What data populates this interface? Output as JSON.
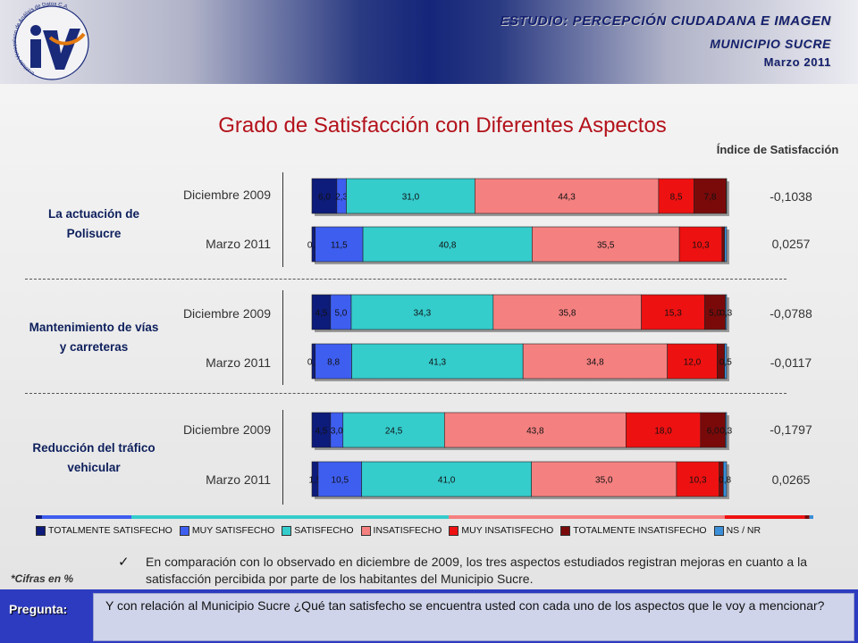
{
  "header": {
    "line1": "ESTUDIO: PERCEPCIÓN CIUDADANA E IMAGEN",
    "line2": "MUNICIPIO SUCRE",
    "line3": "Marzo 2011",
    "logo_text": "Instituto Venezolano de Análisis de Datos C.A."
  },
  "chart_data": {
    "type": "bar",
    "orientation": "horizontal",
    "stacked": true,
    "percent_stacked": true,
    "title": "Grado de Satisfacción con Diferentes Aspectos",
    "index_header": "Índice de Satisfacción",
    "categories_legend": [
      "TOTALMENTE SATISFECHO",
      "MUY SATISFECHO",
      "SATISFECHO",
      "INSATISFECHO",
      "MUY INSATISFECHO",
      "TOTALMENTE INSATISFECHO",
      "NS / NR"
    ],
    "colors": [
      "#0d1b7a",
      "#3e5ef0",
      "#35cccc",
      "#f58080",
      "#ee1111",
      "#7a0a0a",
      "#3a8fd8"
    ],
    "groups": [
      {
        "label": "La actuación de Polisucre",
        "rows": [
          {
            "period": "Diciembre 2009",
            "values": [
              6.0,
              2.3,
              31.0,
              44.3,
              8.5,
              7.8,
              0.1
            ],
            "labels": [
              "6,0",
              "2,3",
              "31,0",
              "44,3",
              "8,5",
              "7,8",
              ""
            ],
            "index": "-0,1038"
          },
          {
            "period": "Marzo 2011",
            "values": [
              0.8,
              11.5,
              40.8,
              35.5,
              10.3,
              0.6,
              0.5
            ],
            "labels": [
              "0,8",
              "11,5",
              "40,8",
              "35,5",
              "10,3",
              "",
              ""
            ],
            "index": "0,0257"
          }
        ]
      },
      {
        "label": "Mantenimiento de vías y carreteras",
        "rows": [
          {
            "period": "Diciembre 2009",
            "values": [
              4.5,
              5.0,
              34.3,
              35.8,
              15.3,
              5.0,
              0.3
            ],
            "labels": [
              "4,5",
              "5,0",
              "34,3",
              "35,8",
              "15,3",
              "5,0",
              "0,3"
            ],
            "index": "-0,0788"
          },
          {
            "period": "Marzo 2011",
            "values": [
              0.8,
              8.8,
              41.3,
              34.8,
              12.0,
              1.8,
              0.5
            ],
            "labels": [
              "0,8",
              "8,8",
              "41,3",
              "34,8",
              "12,0",
              "",
              "0,5"
            ],
            "index": "-0,0117"
          }
        ]
      },
      {
        "label": "Reducción del tráfico vehicular",
        "rows": [
          {
            "period": "Diciembre 2009",
            "values": [
              4.5,
              3.0,
              24.5,
              43.8,
              18.0,
              6.0,
              0.3
            ],
            "labels": [
              "4,5",
              "3,0",
              "24,5",
              "43,8",
              "18,0",
              "6,0",
              "0,3"
            ],
            "index": "-0,1797"
          },
          {
            "period": "Marzo 2011",
            "values": [
              1.5,
              10.5,
              41.0,
              35.0,
              10.3,
              1.0,
              0.8
            ],
            "labels": [
              "1,5",
              "10,5",
              "41,0",
              "35,0",
              "10,3",
              "",
              "0,8"
            ],
            "index": "0,0265"
          }
        ]
      }
    ]
  },
  "notes": {
    "cifras": "*Cifras en %",
    "check": "✓",
    "comparison": "En comparación con lo observado en diciembre de 2009, los tres aspectos estudiados registran mejoras en cuanto a la satisfacción percibida por parte de los habitantes del Municipio Sucre."
  },
  "footer": {
    "pregunta_label": "Pregunta:",
    "pregunta_text": "Y con relación al Municipio Sucre ¿Qué tan satisfecho se encuentra usted con cada uno de los aspectos que le voy a mencionar?"
  }
}
